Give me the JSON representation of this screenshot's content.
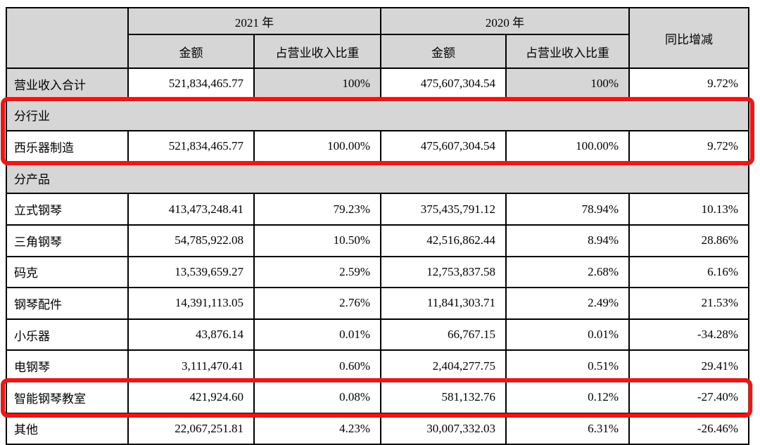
{
  "colors": {
    "header_bg": "#d6d6d6",
    "annotation_red": "#f21313",
    "border": "#000000"
  },
  "table": {
    "header": {
      "corner": "",
      "year_2021": "2021 年",
      "year_2020": "2020 年",
      "amount": "金额",
      "share": "占营业收入比重",
      "yoy": "同比增减"
    },
    "rows": [
      {
        "type": "data",
        "label": "营业收入合计",
        "cells": [
          "521,834,465.77",
          "100%",
          "475,607,304.54",
          "100%",
          "9.72%"
        ],
        "shade": [
          true,
          false,
          true,
          false,
          true,
          false
        ]
      },
      {
        "type": "section",
        "label": "分行业"
      },
      {
        "type": "data",
        "label": "西乐器制造",
        "cells": [
          "521,834,465.77",
          "100.00%",
          "475,607,304.54",
          "100.00%",
          "9.72%"
        ]
      },
      {
        "type": "section",
        "label": "分产品"
      },
      {
        "type": "data",
        "label": "立式钢琴",
        "cells": [
          "413,473,248.41",
          "79.23%",
          "375,435,791.12",
          "78.94%",
          "10.13%"
        ]
      },
      {
        "type": "data",
        "label": "三角钢琴",
        "cells": [
          "54,785,922.08",
          "10.50%",
          "42,516,862.44",
          "8.94%",
          "28.86%"
        ]
      },
      {
        "type": "data",
        "label": "码克",
        "cells": [
          "13,539,659.27",
          "2.59%",
          "12,753,837.58",
          "2.68%",
          "6.16%"
        ]
      },
      {
        "type": "data",
        "label": "钢琴配件",
        "cells": [
          "14,391,113.05",
          "2.76%",
          "11,841,303.71",
          "2.49%",
          "21.53%"
        ]
      },
      {
        "type": "data",
        "label": "小乐器",
        "cells": [
          "43,876.14",
          "0.01%",
          "66,767.15",
          "0.01%",
          "-34.28%"
        ]
      },
      {
        "type": "data",
        "label": "电钢琴",
        "cells": [
          "3,111,470.41",
          "0.60%",
          "2,404,277.75",
          "0.51%",
          "29.41%"
        ]
      },
      {
        "type": "data",
        "label": "智能钢琴教室",
        "cells": [
          "421,924.60",
          "0.08%",
          "581,132.76",
          "0.12%",
          "-27.40%"
        ]
      },
      {
        "type": "data",
        "label": "其他",
        "cells": [
          "22,067,251.81",
          "4.23%",
          "30,007,332.03",
          "6.31%",
          "-26.46%"
        ]
      }
    ],
    "annotations": [
      {
        "id": "box-industry",
        "note": "red highlight around 分行业 and 西乐器制造 rows"
      },
      {
        "id": "box-smart-piano",
        "note": "red highlight around 智能钢琴教室 row"
      }
    ]
  }
}
